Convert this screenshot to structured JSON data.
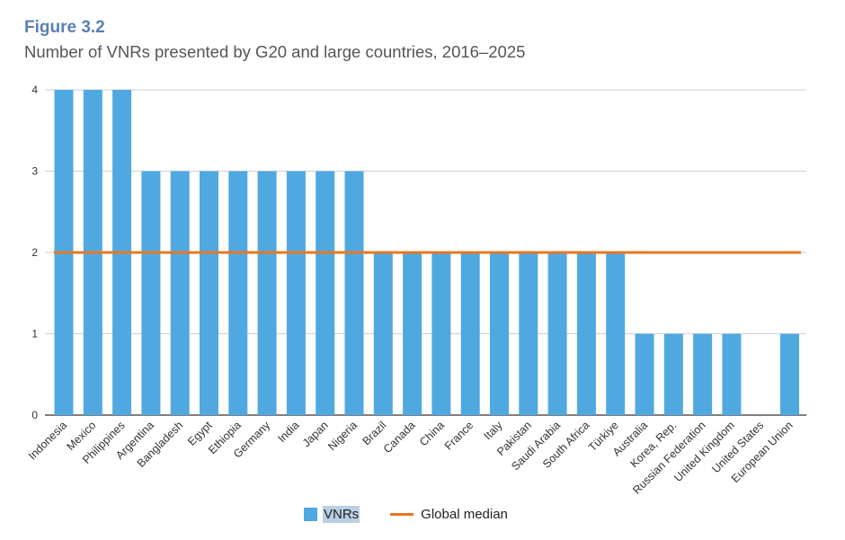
{
  "figure": {
    "label": "Figure 3.2",
    "title": "Number of VNRs presented by G20 and large countries, 2016–2025"
  },
  "chart_data": {
    "type": "bar",
    "categories": [
      "Indonesia",
      "Mexico",
      "Philippines",
      "Argentina",
      "Bangladesh",
      "Egypt",
      "Ethiopia",
      "Germany",
      "India",
      "Japan",
      "Nigeria",
      "Brazil",
      "Canada",
      "China",
      "France",
      "Italy",
      "Pakistan",
      "Saudi Arabia",
      "South Africa",
      "Türkiye",
      "Australia",
      "Korea, Rep.",
      "Russian Federation",
      "United Kingdom",
      "United States",
      "European Union"
    ],
    "series": [
      {
        "name": "VNRs",
        "values": [
          4,
          4,
          4,
          3,
          3,
          3,
          3,
          3,
          3,
          3,
          3,
          2,
          2,
          2,
          2,
          2,
          2,
          2,
          2,
          2,
          1,
          1,
          1,
          1,
          0,
          1
        ]
      }
    ],
    "reference_lines": [
      {
        "name": "Global median",
        "value": 2
      }
    ],
    "ylim": [
      0,
      4
    ],
    "yticks": [
      0,
      1,
      2,
      3,
      4
    ],
    "grid": true,
    "legend_position": "bottom-center",
    "colors": {
      "bar": "#4fa9e0",
      "median": "#e87722",
      "grid": "#d0d0d0",
      "axis": "#333333"
    }
  },
  "legend": {
    "vnr_label": "VNRs",
    "median_label": "Global median"
  }
}
